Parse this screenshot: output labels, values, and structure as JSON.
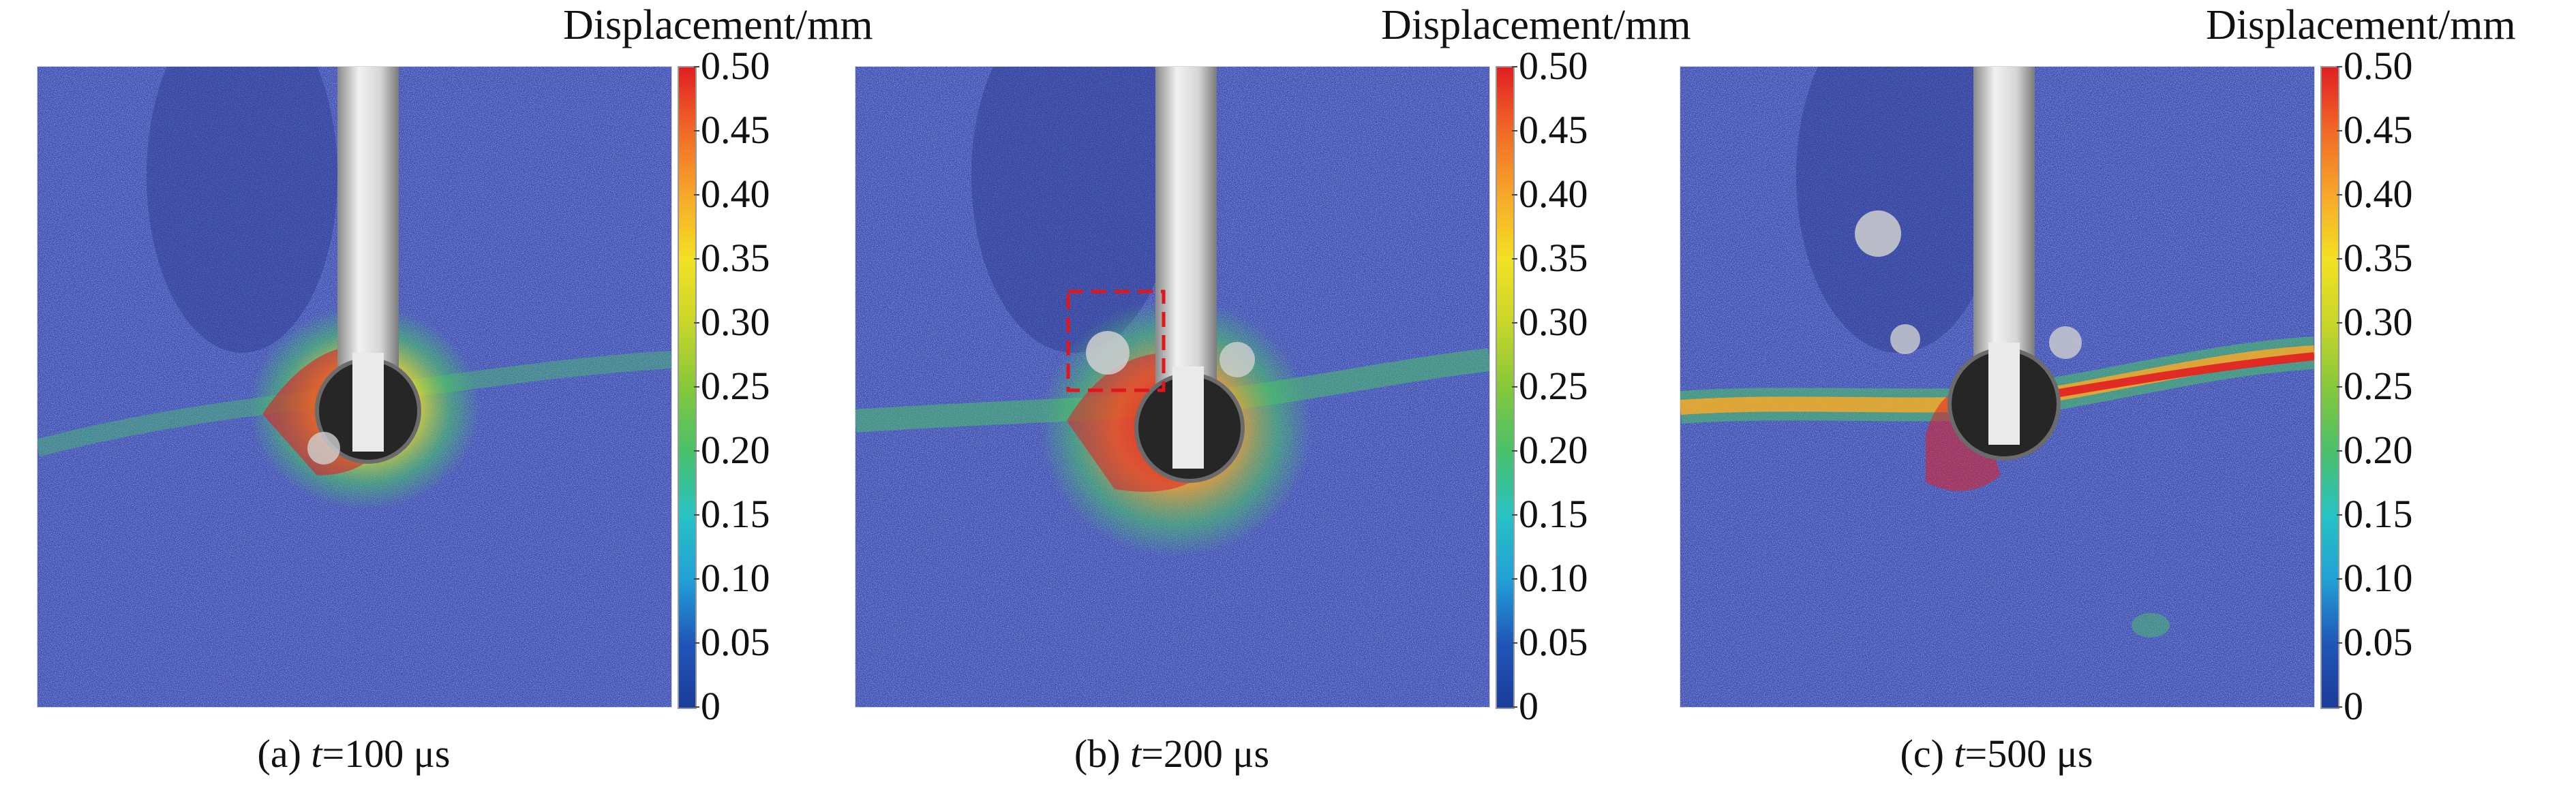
{
  "colorbar": {
    "title": "Displacement/mm",
    "ticks": [
      "0.50",
      "0.45",
      "0.40",
      "0.35",
      "0.30",
      "0.25",
      "0.20",
      "0.15",
      "0.10",
      "0.05",
      "0"
    ],
    "colors": {
      "low": "#1c3c9a",
      "mid": "#4ac06a",
      "high": "#e01f24"
    }
  },
  "panels": [
    {
      "prefix": "(a) ",
      "var": "t",
      "value": "=100 μs"
    },
    {
      "prefix": "(b) ",
      "var": "t",
      "value": "=200 μs"
    },
    {
      "prefix": "(c) ",
      "var": "t",
      "value": "=500 μs"
    }
  ]
}
